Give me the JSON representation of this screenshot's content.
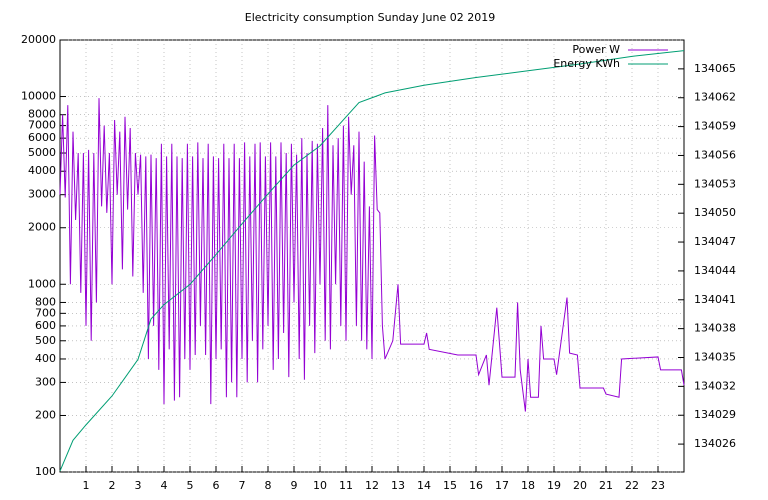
{
  "chart_data": {
    "type": "line",
    "title": "Electricity consumption Sunday June 02 2019",
    "xlim": [
      0,
      24
    ],
    "xticks": [
      1,
      2,
      3,
      4,
      5,
      6,
      7,
      8,
      9,
      10,
      11,
      12,
      13,
      14,
      15,
      16,
      17,
      18,
      19,
      20,
      21,
      22,
      23
    ],
    "ylim": [
      100,
      20000
    ],
    "ylog": true,
    "yticks": [
      100,
      200,
      300,
      400,
      500,
      600,
      700,
      800,
      1000,
      2000,
      3000,
      4000,
      5000,
      6000,
      7000,
      8000,
      10000,
      20000
    ],
    "y2lim": [
      134023.1,
      134068
    ],
    "y2ticks": [
      134026,
      134029,
      134032,
      134035,
      134038,
      134041,
      134044,
      134047,
      134050,
      134053,
      134056,
      134059,
      134062,
      134065
    ],
    "grid": true,
    "legend": "top-right",
    "series": [
      {
        "name": "Power W",
        "color": "#9400d3",
        "x": [
          0,
          0.1,
          0.2,
          0.3,
          0.4,
          0.5,
          0.6,
          0.7,
          0.8,
          0.9,
          1,
          1.1,
          1.2,
          1.3,
          1.4,
          1.5,
          1.6,
          1.7,
          1.8,
          1.9,
          2,
          2.1,
          2.2,
          2.3,
          2.4,
          2.5,
          2.6,
          2.7,
          2.8,
          2.9,
          3,
          3.1,
          3.2,
          3.3,
          3.4,
          3.5,
          3.6,
          3.7,
          3.8,
          3.9,
          4,
          4.1,
          4.2,
          4.3,
          4.4,
          4.5,
          4.6,
          4.7,
          4.8,
          4.9,
          5,
          5.1,
          5.2,
          5.3,
          5.4,
          5.5,
          5.6,
          5.7,
          5.8,
          5.9,
          6,
          6.1,
          6.2,
          6.3,
          6.4,
          6.5,
          6.6,
          6.7,
          6.8,
          6.9,
          7,
          7.1,
          7.2,
          7.3,
          7.4,
          7.5,
          7.6,
          7.7,
          7.8,
          7.9,
          8,
          8.1,
          8.2,
          8.3,
          8.4,
          8.5,
          8.6,
          8.7,
          8.8,
          8.9,
          9,
          9.1,
          9.2,
          9.3,
          9.4,
          9.5,
          9.6,
          9.7,
          9.8,
          9.9,
          10,
          10.1,
          10.2,
          10.3,
          10.4,
          10.5,
          10.6,
          10.7,
          10.8,
          10.9,
          11,
          11.1,
          11.2,
          11.3,
          11.4,
          11.5,
          11.6,
          11.7,
          11.8,
          11.9,
          12,
          12.1,
          12.2,
          12.3,
          12.4,
          12.5,
          12.8,
          13,
          13.1,
          14,
          14.1,
          14.2,
          15.3,
          16,
          16.1,
          16.4,
          16.5,
          16.8,
          17,
          17.5,
          17.6,
          17.7,
          17.9,
          18,
          18.1,
          18.4,
          18.5,
          18.6,
          19,
          19.1,
          19.5,
          19.6,
          19.9,
          20,
          20.9,
          21,
          21.5,
          21.6,
          23,
          23.1,
          23.9,
          24
        ],
        "values": [
          3000,
          8000,
          2900,
          9000,
          1000,
          6500,
          2200,
          5000,
          900,
          5000,
          600,
          5200,
          500,
          5000,
          800,
          9800,
          2600,
          7000,
          2400,
          5000,
          1000,
          7500,
          3000,
          6500,
          1200,
          7800,
          2500,
          6800,
          1100,
          5000,
          3000,
          4900,
          900,
          4800,
          400,
          4900,
          600,
          4700,
          350,
          5600,
          230,
          4800,
          450,
          5600,
          240,
          4800,
          250,
          4700,
          400,
          5600,
          350,
          4800,
          420,
          5700,
          600,
          4700,
          420,
          5600,
          230,
          4800,
          400,
          4700,
          450,
          5600,
          250,
          4700,
          300,
          5600,
          250,
          4700,
          400,
          5700,
          300,
          4800,
          500,
          5600,
          300,
          5700,
          450,
          4800,
          600,
          5700,
          350,
          4800,
          400,
          5700,
          550,
          5000,
          320,
          5600,
          800,
          4900,
          400,
          6000,
          310,
          5000,
          600,
          5800,
          430,
          5600,
          1000,
          6800,
          500,
          9000,
          450,
          5500,
          1000,
          6000,
          600,
          7000,
          500,
          7800,
          3000,
          5500,
          600,
          6500,
          500,
          4500,
          450,
          2600,
          400,
          6200,
          2500,
          2400,
          600,
          400,
          500,
          1000,
          480,
          480,
          550,
          450,
          420,
          420,
          330,
          420,
          290,
          750,
          320,
          320,
          800,
          350,
          210,
          400,
          250,
          250,
          600,
          400,
          400,
          330,
          850,
          430,
          420,
          280,
          280,
          260,
          250,
          400,
          410,
          350,
          350,
          290
        ]
      },
      {
        "name": "Energy KWh",
        "color": "#009e73",
        "axis": "y2",
        "x": [
          0,
          0.5,
          1,
          2,
          3,
          3.5,
          4,
          5,
          6,
          7,
          8,
          9,
          10,
          11,
          11.5,
          12,
          12.5,
          14,
          16,
          18,
          20,
          22,
          24
        ],
        "values": [
          134023.2,
          134026.4,
          134028,
          134031,
          134034.8,
          134039,
          134040.5,
          134042.6,
          134045.7,
          134048.9,
          134052,
          134055,
          134057,
          134060,
          134061.5,
          134062,
          134062.5,
          134063.3,
          134064.1,
          134064.8,
          134065.5,
          134066.3,
          134066.9
        ]
      }
    ]
  }
}
